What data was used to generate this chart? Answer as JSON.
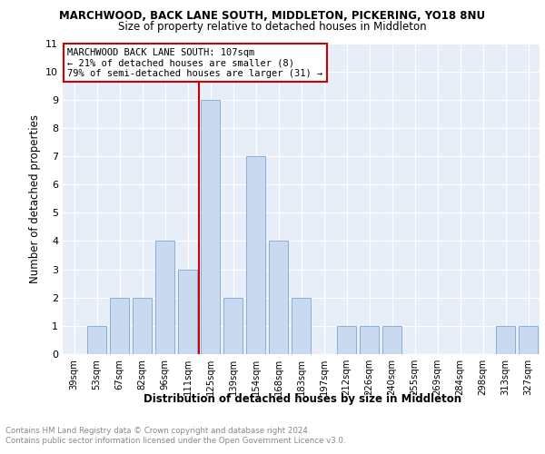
{
  "title": "MARCHWOOD, BACK LANE SOUTH, MIDDLETON, PICKERING, YO18 8NU",
  "subtitle": "Size of property relative to detached houses in Middleton",
  "xlabel": "Distribution of detached houses by size in Middleton",
  "ylabel": "Number of detached properties",
  "categories": [
    "39sqm",
    "53sqm",
    "67sqm",
    "82sqm",
    "96sqm",
    "111sqm",
    "125sqm",
    "139sqm",
    "154sqm",
    "168sqm",
    "183sqm",
    "197sqm",
    "212sqm",
    "226sqm",
    "240sqm",
    "255sqm",
    "269sqm",
    "284sqm",
    "298sqm",
    "313sqm",
    "327sqm"
  ],
  "values": [
    0,
    1,
    2,
    2,
    4,
    3,
    9,
    2,
    7,
    4,
    2,
    0,
    1,
    1,
    1,
    0,
    0,
    0,
    0,
    1,
    1
  ],
  "bar_color": "#c9d9f0",
  "bar_edgecolor": "#7ba7d4",
  "highlight_index": 5,
  "highlight_color": "#cc0000",
  "ylim": [
    0,
    11
  ],
  "yticks": [
    0,
    1,
    2,
    3,
    4,
    5,
    6,
    7,
    8,
    9,
    10,
    11
  ],
  "annotation_title": "MARCHWOOD BACK LANE SOUTH: 107sqm",
  "annotation_line1": "← 21% of detached houses are smaller (8)",
  "annotation_line2": "79% of semi-detached houses are larger (31) →",
  "footer1": "Contains HM Land Registry data © Crown copyright and database right 2024.",
  "footer2": "Contains public sector information licensed under the Open Government Licence v3.0.",
  "plot_bg_color": "#e8eef8"
}
